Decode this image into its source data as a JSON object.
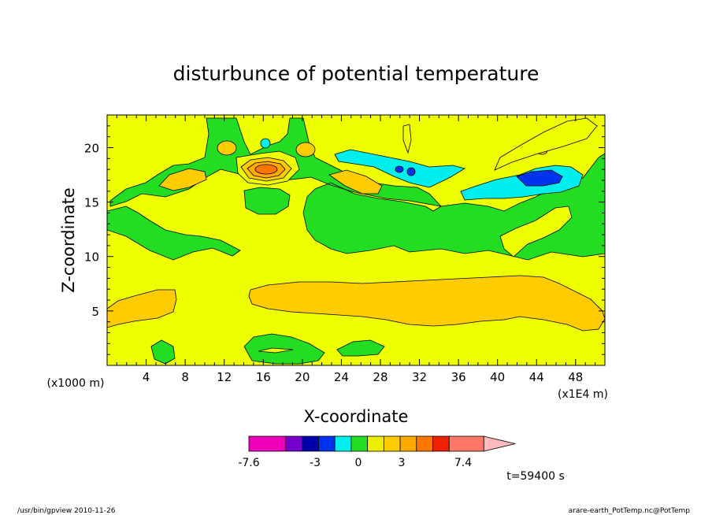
{
  "chart_data": {
    "type": "heatmap",
    "title": "disturbunce of potential temperature",
    "xlabel": "X-coordinate",
    "ylabel": "Z-coordinate",
    "x_unit_left": "(x1000 m)",
    "x_unit_right": "(x1E4 m)",
    "xlim": [
      0,
      51
    ],
    "ylim": [
      0,
      23
    ],
    "x_ticks": [
      4,
      8,
      12,
      16,
      20,
      24,
      28,
      32,
      36,
      40,
      44,
      48
    ],
    "y_ticks": [
      5,
      10,
      15,
      20
    ],
    "time_label": "t=59400 s",
    "footer_left": "/usr/bin/gpview   2010-11-26",
    "footer_right": "arare-earth_PotTemp.nc@PotTemp",
    "colorbar": {
      "levels": [
        -7.6,
        -6.6,
        -5.6,
        -4.6,
        -3.6,
        -2.6,
        -1.6,
        -0.6,
        0.4,
        1.4,
        2.4,
        3.4,
        4.4,
        5.4,
        6.4,
        7.4
      ],
      "tick_labels": [
        "-7.6",
        "-3",
        "0",
        "3",
        "7.4"
      ],
      "colors": [
        "#ee00bb",
        "#7700cc",
        "#0000aa",
        "#0033ee",
        "#00eeee",
        "#22dd22",
        "#eeee00",
        "#ffcc00",
        "#ffaa00",
        "#ff7700",
        "#ee2200",
        "#ff7766"
      ],
      "extend_color": "#ffbbbb"
    },
    "fill_colors": {
      "background": "#eeff00",
      "green": "#22dd22",
      "orange": "#ffcc00",
      "darkorange": "#ffaa00",
      "red_orange": "#ff7700",
      "cyan": "#00eeee",
      "blue": "#0033ee",
      "navy": "#0000aa"
    }
  }
}
